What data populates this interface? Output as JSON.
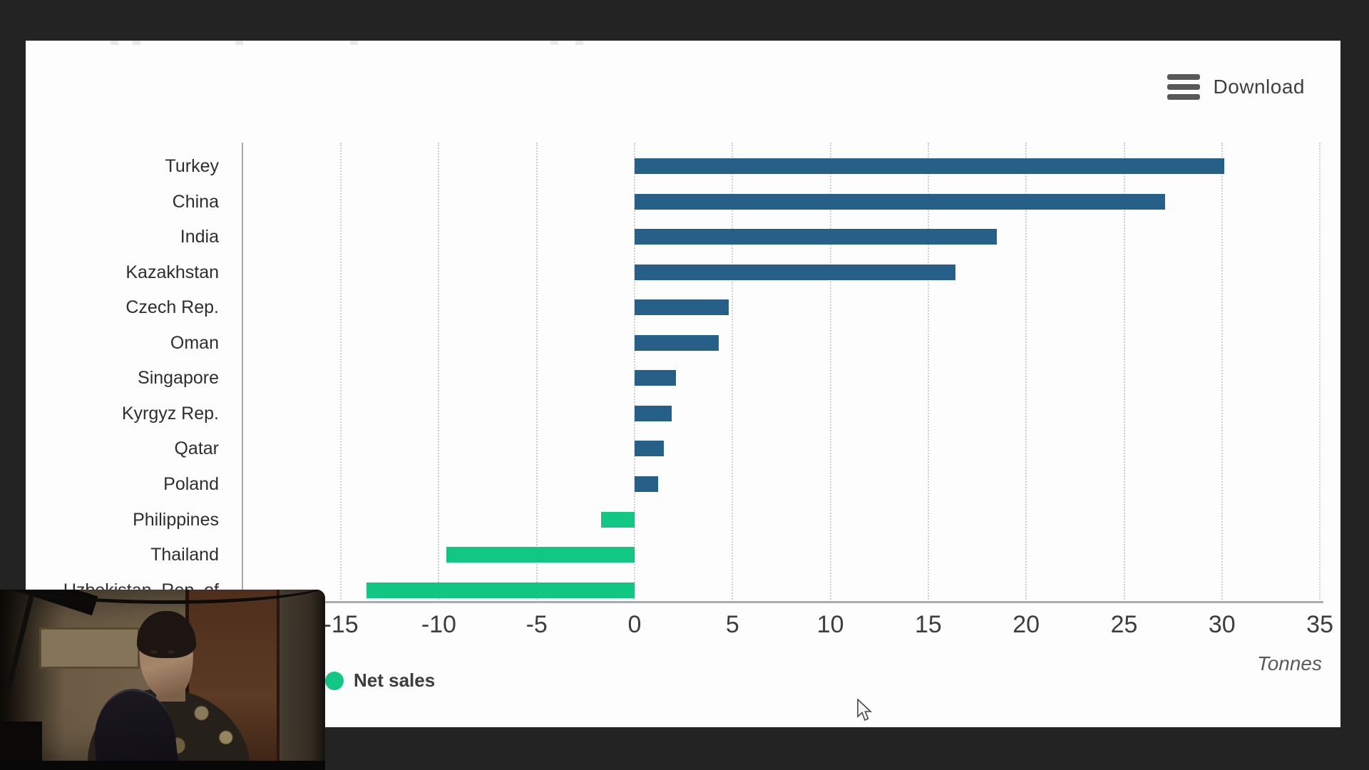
{
  "window": {
    "background": "#232323",
    "card_background": "#FDFDFD"
  },
  "toolbar": {
    "download_label": "Download"
  },
  "chart_data": {
    "type": "bar",
    "orientation": "horizontal",
    "title": "",
    "unit_label": "Tonnes",
    "categories": [
      "Turkey",
      "China",
      "India",
      "Kazakhstan",
      "Czech Rep.",
      "Oman",
      "Singapore",
      "Kyrgyz Rep.",
      "Qatar",
      "Poland",
      "Philippines",
      "Thailand",
      "Uzbekistan, Rep. of"
    ],
    "values": [
      30.1,
      27.1,
      18.5,
      16.4,
      4.8,
      4.3,
      2.1,
      1.9,
      1.5,
      1.2,
      -1.7,
      -9.6,
      -13.7
    ],
    "x_ticks": [
      -15,
      -10,
      -5,
      0,
      5,
      10,
      15,
      20,
      25,
      30,
      35
    ],
    "xlim": [
      -17.5,
      35.3
    ],
    "grid": "vertical-dotted",
    "bar_colors": {
      "positive": "#265F88",
      "negative": "#12C784"
    },
    "legend": [
      {
        "label": "Net sales",
        "color": "#12C784",
        "position": "bottom-left"
      }
    ]
  }
}
